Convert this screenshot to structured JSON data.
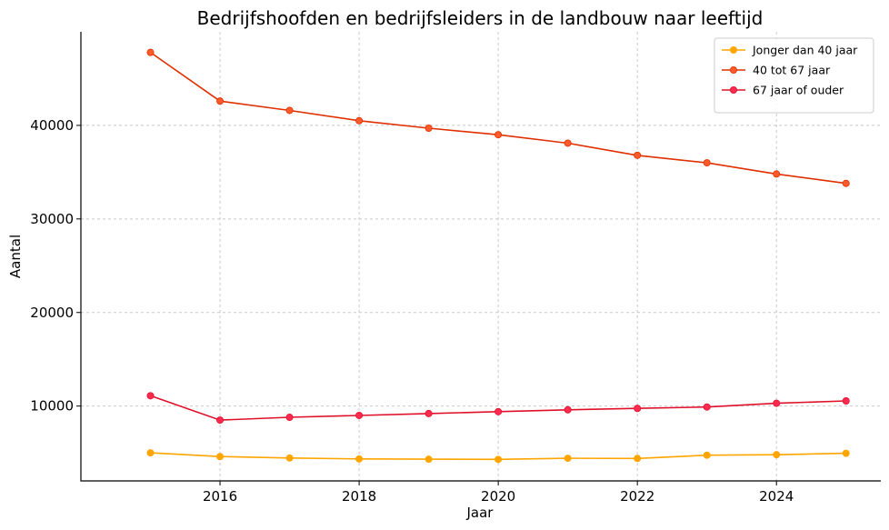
{
  "chart_data": {
    "type": "line",
    "title": "Bedrijfshoofden en bedrijfsleiders in de landbouw naar leeftijd",
    "xlabel": "Jaar",
    "ylabel": "Aantal",
    "x": [
      2015,
      2016,
      2017,
      2018,
      2019,
      2020,
      2021,
      2022,
      2023,
      2024,
      2025
    ],
    "xlim": [
      2014.0,
      2025.5
    ],
    "ylim": [
      2000,
      50000
    ],
    "xticks": [
      2016,
      2018,
      2020,
      2022,
      2024
    ],
    "yticks": [
      10000,
      20000,
      30000,
      40000
    ],
    "grid": true,
    "legend_position": "top-right",
    "series": [
      {
        "name": "Jonger dan 40 jaar",
        "color": "#FFA500",
        "marker_color": "#FFA500",
        "values": [
          5000,
          4600,
          4450,
          4350,
          4320,
          4300,
          4420,
          4400,
          4750,
          4800,
          4950
        ]
      },
      {
        "name": "40 tot 67 jaar",
        "color": "#E03000",
        "marker_color": "#FF5A2A",
        "values": [
          47800,
          42600,
          41600,
          40500,
          39700,
          39000,
          38100,
          36800,
          36000,
          34800,
          33800
        ]
      },
      {
        "name": "67 jaar of ouder",
        "color": "#E0102A",
        "marker_color": "#FF2A50",
        "values": [
          11100,
          8500,
          8800,
          9000,
          9200,
          9400,
          9600,
          9750,
          9900,
          10300,
          10550
        ]
      }
    ]
  }
}
